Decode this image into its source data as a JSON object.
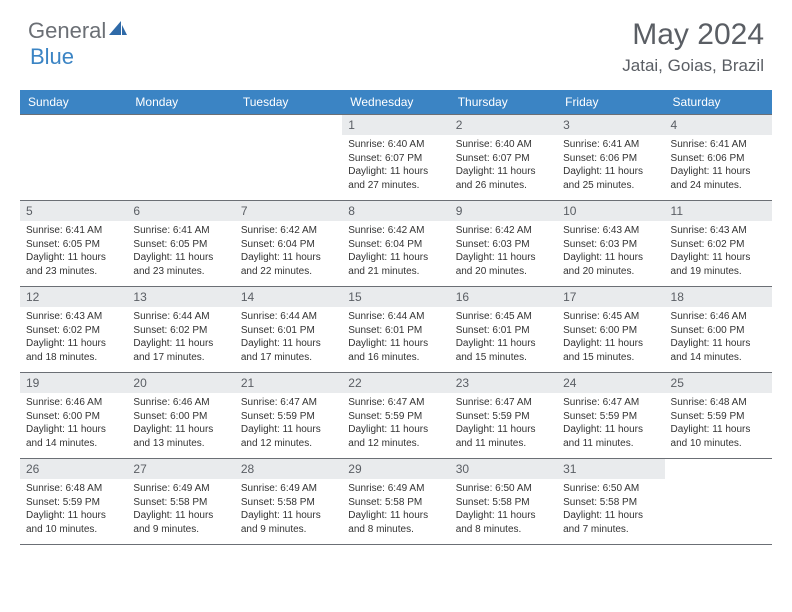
{
  "brand": {
    "text1": "General",
    "text2": "Blue",
    "color1": "#6b6f75",
    "color2": "#3b84c4"
  },
  "title": "May 2024",
  "location": "Jatai, Goias, Brazil",
  "header_bg": "#3b84c4",
  "daynum_bg": "#e9ebed",
  "border_color": "#6b6f75",
  "weekdays": [
    "Sunday",
    "Monday",
    "Tuesday",
    "Wednesday",
    "Thursday",
    "Friday",
    "Saturday"
  ],
  "weeks": [
    [
      {
        "n": "",
        "sr": "",
        "ss": "",
        "dl": ""
      },
      {
        "n": "",
        "sr": "",
        "ss": "",
        "dl": ""
      },
      {
        "n": "",
        "sr": "",
        "ss": "",
        "dl": ""
      },
      {
        "n": "1",
        "sr": "6:40 AM",
        "ss": "6:07 PM",
        "dl": "11 hours and 27 minutes."
      },
      {
        "n": "2",
        "sr": "6:40 AM",
        "ss": "6:07 PM",
        "dl": "11 hours and 26 minutes."
      },
      {
        "n": "3",
        "sr": "6:41 AM",
        "ss": "6:06 PM",
        "dl": "11 hours and 25 minutes."
      },
      {
        "n": "4",
        "sr": "6:41 AM",
        "ss": "6:06 PM",
        "dl": "11 hours and 24 minutes."
      }
    ],
    [
      {
        "n": "5",
        "sr": "6:41 AM",
        "ss": "6:05 PM",
        "dl": "11 hours and 23 minutes."
      },
      {
        "n": "6",
        "sr": "6:41 AM",
        "ss": "6:05 PM",
        "dl": "11 hours and 23 minutes."
      },
      {
        "n": "7",
        "sr": "6:42 AM",
        "ss": "6:04 PM",
        "dl": "11 hours and 22 minutes."
      },
      {
        "n": "8",
        "sr": "6:42 AM",
        "ss": "6:04 PM",
        "dl": "11 hours and 21 minutes."
      },
      {
        "n": "9",
        "sr": "6:42 AM",
        "ss": "6:03 PM",
        "dl": "11 hours and 20 minutes."
      },
      {
        "n": "10",
        "sr": "6:43 AM",
        "ss": "6:03 PM",
        "dl": "11 hours and 20 minutes."
      },
      {
        "n": "11",
        "sr": "6:43 AM",
        "ss": "6:02 PM",
        "dl": "11 hours and 19 minutes."
      }
    ],
    [
      {
        "n": "12",
        "sr": "6:43 AM",
        "ss": "6:02 PM",
        "dl": "11 hours and 18 minutes."
      },
      {
        "n": "13",
        "sr": "6:44 AM",
        "ss": "6:02 PM",
        "dl": "11 hours and 17 minutes."
      },
      {
        "n": "14",
        "sr": "6:44 AM",
        "ss": "6:01 PM",
        "dl": "11 hours and 17 minutes."
      },
      {
        "n": "15",
        "sr": "6:44 AM",
        "ss": "6:01 PM",
        "dl": "11 hours and 16 minutes."
      },
      {
        "n": "16",
        "sr": "6:45 AM",
        "ss": "6:01 PM",
        "dl": "11 hours and 15 minutes."
      },
      {
        "n": "17",
        "sr": "6:45 AM",
        "ss": "6:00 PM",
        "dl": "11 hours and 15 minutes."
      },
      {
        "n": "18",
        "sr": "6:46 AM",
        "ss": "6:00 PM",
        "dl": "11 hours and 14 minutes."
      }
    ],
    [
      {
        "n": "19",
        "sr": "6:46 AM",
        "ss": "6:00 PM",
        "dl": "11 hours and 14 minutes."
      },
      {
        "n": "20",
        "sr": "6:46 AM",
        "ss": "6:00 PM",
        "dl": "11 hours and 13 minutes."
      },
      {
        "n": "21",
        "sr": "6:47 AM",
        "ss": "5:59 PM",
        "dl": "11 hours and 12 minutes."
      },
      {
        "n": "22",
        "sr": "6:47 AM",
        "ss": "5:59 PM",
        "dl": "11 hours and 12 minutes."
      },
      {
        "n": "23",
        "sr": "6:47 AM",
        "ss": "5:59 PM",
        "dl": "11 hours and 11 minutes."
      },
      {
        "n": "24",
        "sr": "6:47 AM",
        "ss": "5:59 PM",
        "dl": "11 hours and 11 minutes."
      },
      {
        "n": "25",
        "sr": "6:48 AM",
        "ss": "5:59 PM",
        "dl": "11 hours and 10 minutes."
      }
    ],
    [
      {
        "n": "26",
        "sr": "6:48 AM",
        "ss": "5:59 PM",
        "dl": "11 hours and 10 minutes."
      },
      {
        "n": "27",
        "sr": "6:49 AM",
        "ss": "5:58 PM",
        "dl": "11 hours and 9 minutes."
      },
      {
        "n": "28",
        "sr": "6:49 AM",
        "ss": "5:58 PM",
        "dl": "11 hours and 9 minutes."
      },
      {
        "n": "29",
        "sr": "6:49 AM",
        "ss": "5:58 PM",
        "dl": "11 hours and 8 minutes."
      },
      {
        "n": "30",
        "sr": "6:50 AM",
        "ss": "5:58 PM",
        "dl": "11 hours and 8 minutes."
      },
      {
        "n": "31",
        "sr": "6:50 AM",
        "ss": "5:58 PM",
        "dl": "11 hours and 7 minutes."
      },
      {
        "n": "",
        "sr": "",
        "ss": "",
        "dl": ""
      }
    ]
  ],
  "labels": {
    "sunrise": "Sunrise:",
    "sunset": "Sunset:",
    "daylight": "Daylight:"
  }
}
